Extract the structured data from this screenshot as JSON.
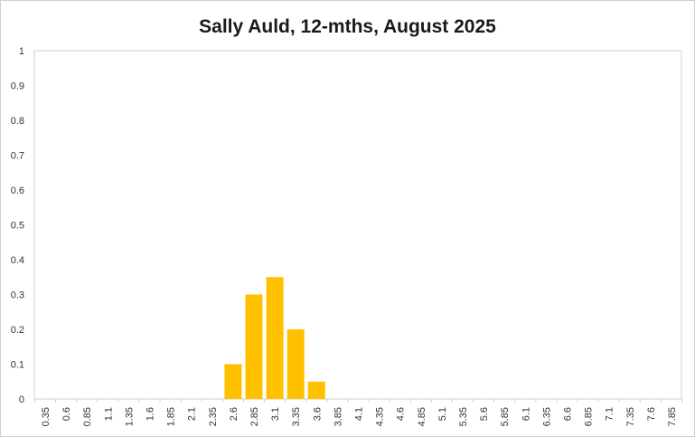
{
  "chart_data": {
    "type": "bar",
    "title": "Sally Auld, 12-mths, August 2025",
    "xlabel": "",
    "ylabel": "",
    "categories": [
      "0.35",
      "0.6",
      "0.85",
      "1.1",
      "1.35",
      "1.6",
      "1.85",
      "2.1",
      "2.35",
      "2.6",
      "2.85",
      "3.1",
      "3.35",
      "3.6",
      "3.85",
      "4.1",
      "4.35",
      "4.6",
      "4.85",
      "5.1",
      "5.35",
      "5.6",
      "5.85",
      "6.1",
      "6.35",
      "6.6",
      "6.85",
      "7.1",
      "7.35",
      "7.6",
      "7.85"
    ],
    "values": [
      0,
      0,
      0,
      0,
      0,
      0,
      0,
      0,
      0,
      0.1,
      0.3,
      0.35,
      0.2,
      0.05,
      0,
      0,
      0,
      0,
      0,
      0,
      0,
      0,
      0,
      0,
      0,
      0,
      0,
      0,
      0,
      0,
      0
    ],
    "ylim": [
      0,
      1
    ],
    "yticks": [
      "0",
      "0.1",
      "0.2",
      "0.3",
      "0.4",
      "0.5",
      "0.6",
      "0.7",
      "0.8",
      "0.9",
      "1"
    ],
    "bar_color": "#FFC000",
    "grid": false,
    "legend": "none"
  }
}
